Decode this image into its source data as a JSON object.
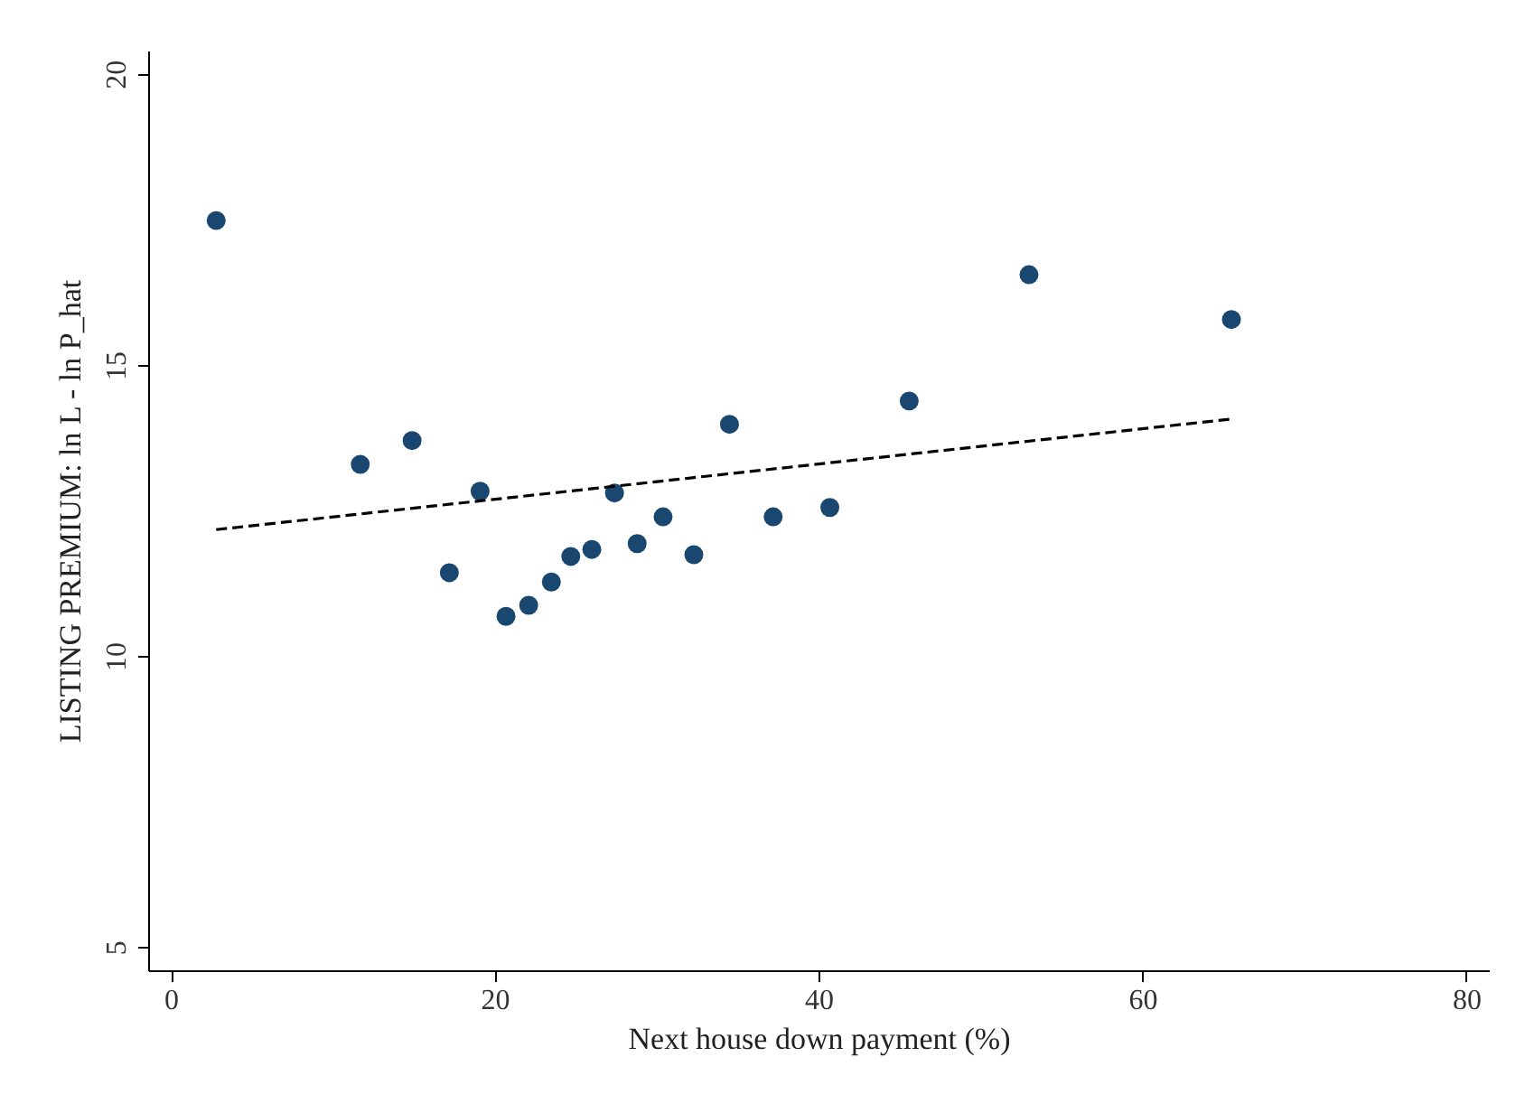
{
  "chart_data": {
    "type": "scatter",
    "xlabel": "Next house down payment (%)",
    "ylabel": "LISTING PREMIUM: ln L - ln P_hat",
    "xlim": [
      -1.4,
      81.4
    ],
    "xticks": [
      0,
      20,
      40,
      60,
      80
    ],
    "ylim": [
      4.6,
      20.4
    ],
    "yticks": [
      5,
      10,
      15,
      20
    ],
    "grid": false,
    "legend": false,
    "marker": "circle",
    "series": [
      {
        "color": "#1a476f",
        "x": [
          2.8,
          11.7,
          14.9,
          17.2,
          19.1,
          20.7,
          22.1,
          23.5,
          24.7,
          26.0,
          27.4,
          28.8,
          30.4,
          32.3,
          34.5,
          37.2,
          40.7,
          45.6,
          53.0,
          65.5
        ],
        "values": [
          17.48,
          13.29,
          13.7,
          11.43,
          12.83,
          10.68,
          10.87,
          11.27,
          11.71,
          11.83,
          12.8,
          11.93,
          12.39,
          11.74,
          13.98,
          12.39,
          12.55,
          14.38,
          16.55,
          15.78
        ]
      },
      {
        "type": "line",
        "color": "#000000",
        "line_style": "dashed",
        "marker": "none",
        "x": [
          2.8,
          65.5
        ],
        "values": [
          12.17,
          14.07
        ]
      }
    ]
  }
}
